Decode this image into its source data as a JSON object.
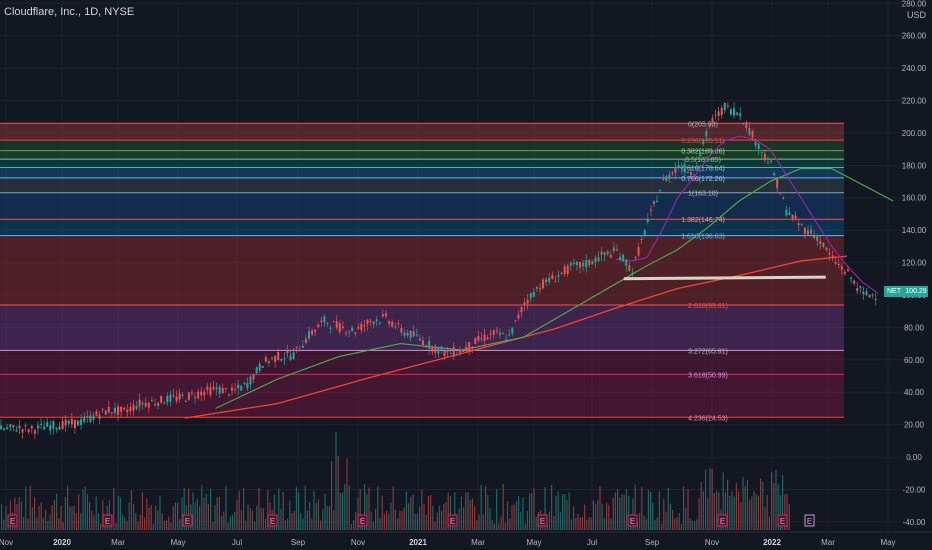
{
  "header": {
    "title": "Cloudflare, Inc., 1D, NYSE"
  },
  "currency": "USD",
  "ticker": {
    "symbol": "NET",
    "last_price": "100.29"
  },
  "colors": {
    "background": "#131722",
    "grid": "#1e222d",
    "up": "#26a69a",
    "down": "#ef5350",
    "ma_fast": "#9c27b0",
    "ma_mid": "#4caf50",
    "ma_slow": "#f44336",
    "support": "#d9d3c7"
  },
  "chart_data": {
    "type": "line",
    "title": "Cloudflare, Inc., 1D, NYSE",
    "x_ticks": [
      "Nov",
      "2020",
      "Mar",
      "May",
      "Jul",
      "Sep",
      "Nov",
      "2021",
      "Mar",
      "May",
      "Jul",
      "Sep",
      "Nov",
      "2022",
      "Mar",
      "May"
    ],
    "y_ticks": [
      "280.00",
      "260.00",
      "240.00",
      "220.00",
      "200.00",
      "180.00",
      "160.00",
      "140.00",
      "120.00",
      "100.00",
      "80.00",
      "60.00",
      "40.00",
      "20.00",
      "0.00",
      "-20.00",
      "-40.00"
    ],
    "ylim": [
      -45,
      282
    ],
    "fib_levels": [
      {
        "label": "0(205.93)",
        "price": 205.93,
        "fill": "#455a64",
        "line": "#ef5350",
        "text": "#b2b5be"
      },
      {
        "label": "0.236(195.51)",
        "price": 195.51,
        "fill": "#ef5350",
        "line": "#f44336",
        "text": "#f44336"
      },
      {
        "label": "0.382(189.06)",
        "price": 189.06,
        "fill": "#2e7d32",
        "line": "#4caf50",
        "text": "#a5d6a7"
      },
      {
        "label": "0.5(183.85)",
        "price": 183.85,
        "fill": "#388e3c",
        "line": "#81c784",
        "text": "#81c784"
      },
      {
        "label": "0.618(178.64)",
        "price": 178.64,
        "fill": "#00897b",
        "line": "#4db6ac",
        "text": "#80cbc4"
      },
      {
        "label": "0.786(172.26)",
        "price": 172.26,
        "fill": "#1e88e5",
        "line": "#64b5f6",
        "text": "#90caf9"
      },
      {
        "label": "1(163.10)",
        "price": 163.1,
        "fill": "#546e7a",
        "line": "#90a4ae",
        "text": "#b0bec5"
      },
      {
        "label": "1.382(146.74)",
        "price": 146.74,
        "fill": "#1565c0",
        "line": "#ef5350",
        "text": "#ef9a9a"
      },
      {
        "label": "1.618(136.63)",
        "price": 136.63,
        "fill": "#0277bd",
        "line": "#4fc3f7",
        "text": "#4fc3f7"
      },
      {
        "label": "2.618(93.81)",
        "price": 93.81,
        "fill": "#e53935",
        "line": "#ef5350",
        "text": "#ef5350"
      },
      {
        "label": "3.272(65.81)",
        "price": 65.81,
        "fill": "#ab47bc",
        "line": "#ce93d8",
        "text": "#b2b5be"
      },
      {
        "label": "3.618(50.99)",
        "price": 50.99,
        "fill": "#ad1457",
        "line": "#e91e63",
        "text": "#ce93d8"
      },
      {
        "label": "4.236(24.53)",
        "price": 24.53,
        "fill": "#c2185b",
        "line": "#f44336",
        "text": "#f48fb1"
      }
    ],
    "series": [
      {
        "name": "",
        "kind": "price",
        "x": [
          0,
          1,
          2,
          3,
          4,
          5,
          6,
          7,
          8,
          9,
          10,
          11,
          12,
          13,
          14,
          15,
          16,
          17,
          18,
          19,
          20,
          21,
          22,
          23,
          24,
          25,
          26,
          27,
          28,
          29,
          30,
          31,
          32,
          33,
          34,
          35,
          36,
          37,
          38,
          39,
          40,
          41,
          42,
          43,
          44,
          45,
          46,
          47,
          48,
          49,
          50,
          51,
          52,
          53,
          54,
          55,
          56,
          57
        ],
        "values": [
          17,
          18,
          17,
          19,
          20,
          21,
          25,
          29,
          28,
          33,
          34,
          36,
          37,
          40,
          42,
          40,
          45,
          58,
          62,
          63,
          75,
          84,
          80,
          78,
          84,
          86,
          78,
          74,
          68,
          64,
          66,
          72,
          76,
          74,
          95,
          106,
          111,
          117,
          119,
          124,
          127,
          115,
          145,
          170,
          180,
          175,
          205,
          216,
          212,
          195,
          180,
          152,
          142,
          136,
          122,
          113,
          100,
          100.29
        ]
      },
      {
        "name": "",
        "kind": "ma_fast",
        "x": [
          40,
          41,
          42,
          43,
          44,
          45,
          46,
          47,
          48,
          49,
          50,
          51,
          52,
          53,
          54,
          55,
          56,
          57
        ],
        "values": [
          122,
          121,
          123,
          140,
          160,
          172,
          185,
          195,
          198,
          196,
          190,
          175,
          160,
          145,
          130,
          118,
          108,
          101
        ]
      },
      {
        "name": "",
        "kind": "ma_mid",
        "x": [
          14,
          18,
          22,
          26,
          30,
          34,
          38,
          42,
          44,
          46,
          48,
          50,
          52,
          54,
          56,
          58
        ],
        "values": [
          30,
          48,
          62,
          70,
          66,
          74,
          96,
          118,
          128,
          142,
          158,
          170,
          178,
          178,
          168,
          158
        ]
      },
      {
        "name": "",
        "kind": "ma_slow",
        "x": [
          12,
          18,
          24,
          30,
          36,
          40,
          44,
          48,
          52,
          55
        ],
        "values": [
          24,
          33,
          49,
          64,
          79,
          92,
          104,
          112,
          121,
          124
        ]
      }
    ],
    "support_line": {
      "from": {
        "x": 40.5,
        "y": 110
      },
      "to": {
        "x": 52,
        "y": 111
      }
    },
    "volume_scale": "relative",
    "earnings_markers": [
      "E",
      "E",
      "E",
      "E",
      "E",
      "E",
      "E",
      "E",
      "E",
      "E"
    ],
    "earnings_future": [
      "E"
    ]
  }
}
